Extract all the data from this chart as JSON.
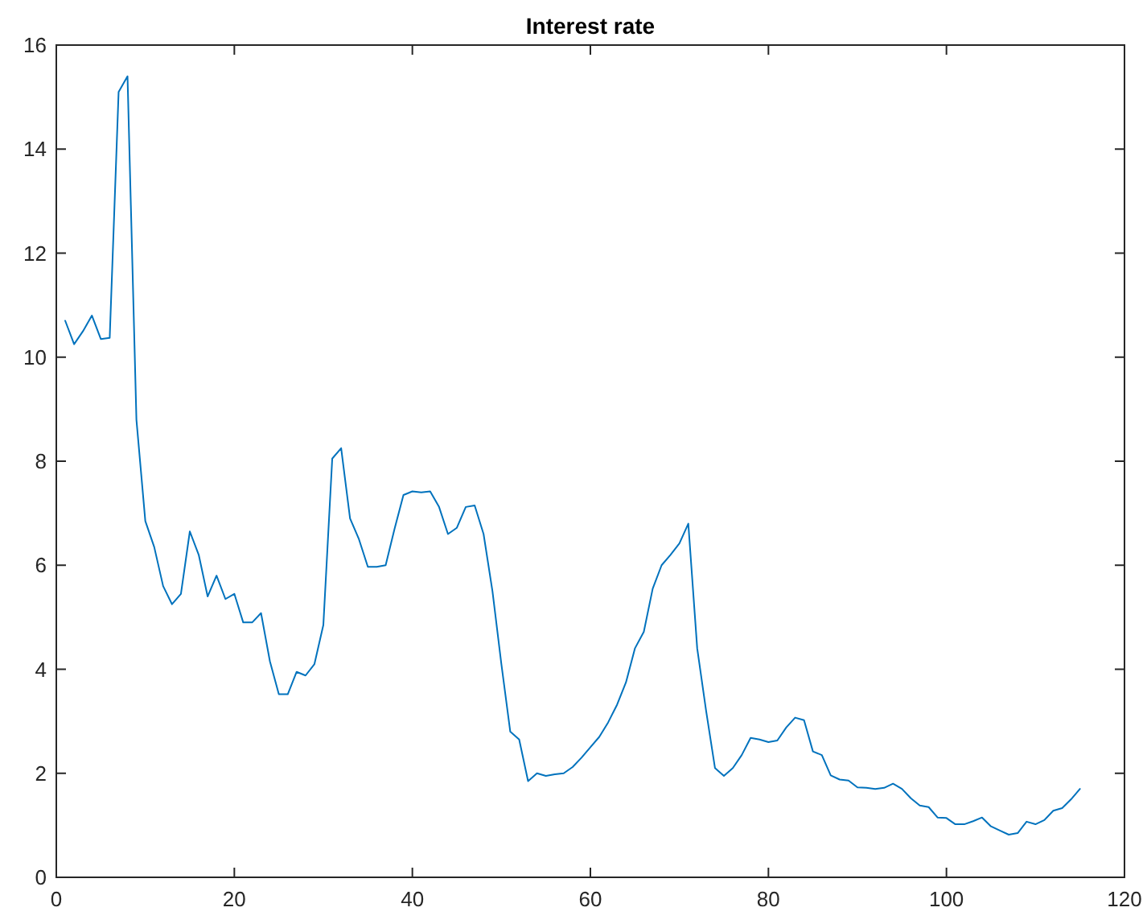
{
  "chart_data": {
    "type": "line",
    "title": "Interest rate",
    "x": [
      1,
      2,
      3,
      4,
      5,
      6,
      7,
      8,
      9,
      10,
      11,
      12,
      13,
      14,
      15,
      16,
      17,
      18,
      19,
      20,
      21,
      22,
      23,
      24,
      25,
      26,
      27,
      28,
      29,
      30,
      31,
      32,
      33,
      34,
      35,
      36,
      37,
      38,
      39,
      40,
      41,
      42,
      43,
      44,
      45,
      46,
      47,
      48,
      49,
      50,
      51,
      52,
      53,
      54,
      55,
      56,
      57,
      58,
      59,
      60,
      61,
      62,
      63,
      64,
      65,
      66,
      67,
      68,
      69,
      70,
      71,
      72,
      73,
      74,
      75,
      76,
      77,
      78,
      79,
      80,
      81,
      82,
      83,
      84,
      85,
      86,
      87,
      88,
      89,
      90,
      91,
      92,
      93,
      94,
      95,
      96,
      97,
      98,
      99,
      100,
      101,
      102,
      103,
      104,
      105,
      106,
      107,
      108,
      109,
      110,
      111,
      112,
      113,
      114,
      115
    ],
    "series": [
      {
        "color": "#0072bd",
        "values": [
          10.7,
          10.25,
          10.5,
          10.8,
          10.35,
          10.37,
          15.1,
          15.4,
          8.8,
          6.85,
          6.35,
          5.6,
          5.25,
          5.45,
          6.65,
          6.2,
          5.4,
          5.8,
          5.35,
          5.45,
          4.9,
          4.9,
          5.08,
          4.15,
          3.52,
          3.52,
          3.95,
          3.88,
          4.1,
          4.85,
          8.05,
          8.25,
          6.9,
          6.5,
          5.97,
          5.97,
          6.0,
          6.7,
          7.35,
          7.42,
          7.4,
          7.42,
          7.12,
          6.6,
          6.72,
          7.12,
          7.15,
          6.6,
          5.5,
          4.1,
          2.8,
          2.65,
          1.85,
          2.0,
          1.95,
          1.98,
          2.0,
          2.12,
          2.3,
          2.5,
          2.7,
          2.98,
          3.32,
          3.75,
          4.4,
          4.72,
          5.55,
          6.0,
          6.2,
          6.42,
          6.8,
          4.4,
          3.2,
          2.1,
          1.95,
          2.1,
          2.35,
          2.68,
          2.65,
          2.6,
          2.63,
          2.88,
          3.07,
          3.02,
          2.42,
          2.35,
          1.96,
          1.88,
          1.86,
          1.73,
          1.72,
          1.7,
          1.72,
          1.8,
          1.7,
          1.52,
          1.38,
          1.35,
          1.15,
          1.14,
          1.02,
          1.02,
          1.08,
          1.15,
          0.98,
          0.9,
          0.82,
          0.85,
          1.07,
          1.02,
          1.1,
          1.28,
          1.33,
          1.5,
          1.7
        ]
      }
    ],
    "xlim": [
      0,
      120
    ],
    "xticks": [
      0,
      20,
      40,
      60,
      80,
      100,
      120
    ],
    "ylim": [
      0,
      16
    ],
    "yticks": [
      0,
      2,
      4,
      6,
      8,
      10,
      12,
      14,
      16
    ],
    "grid": false,
    "marker": "none",
    "line_style": "solid"
  }
}
